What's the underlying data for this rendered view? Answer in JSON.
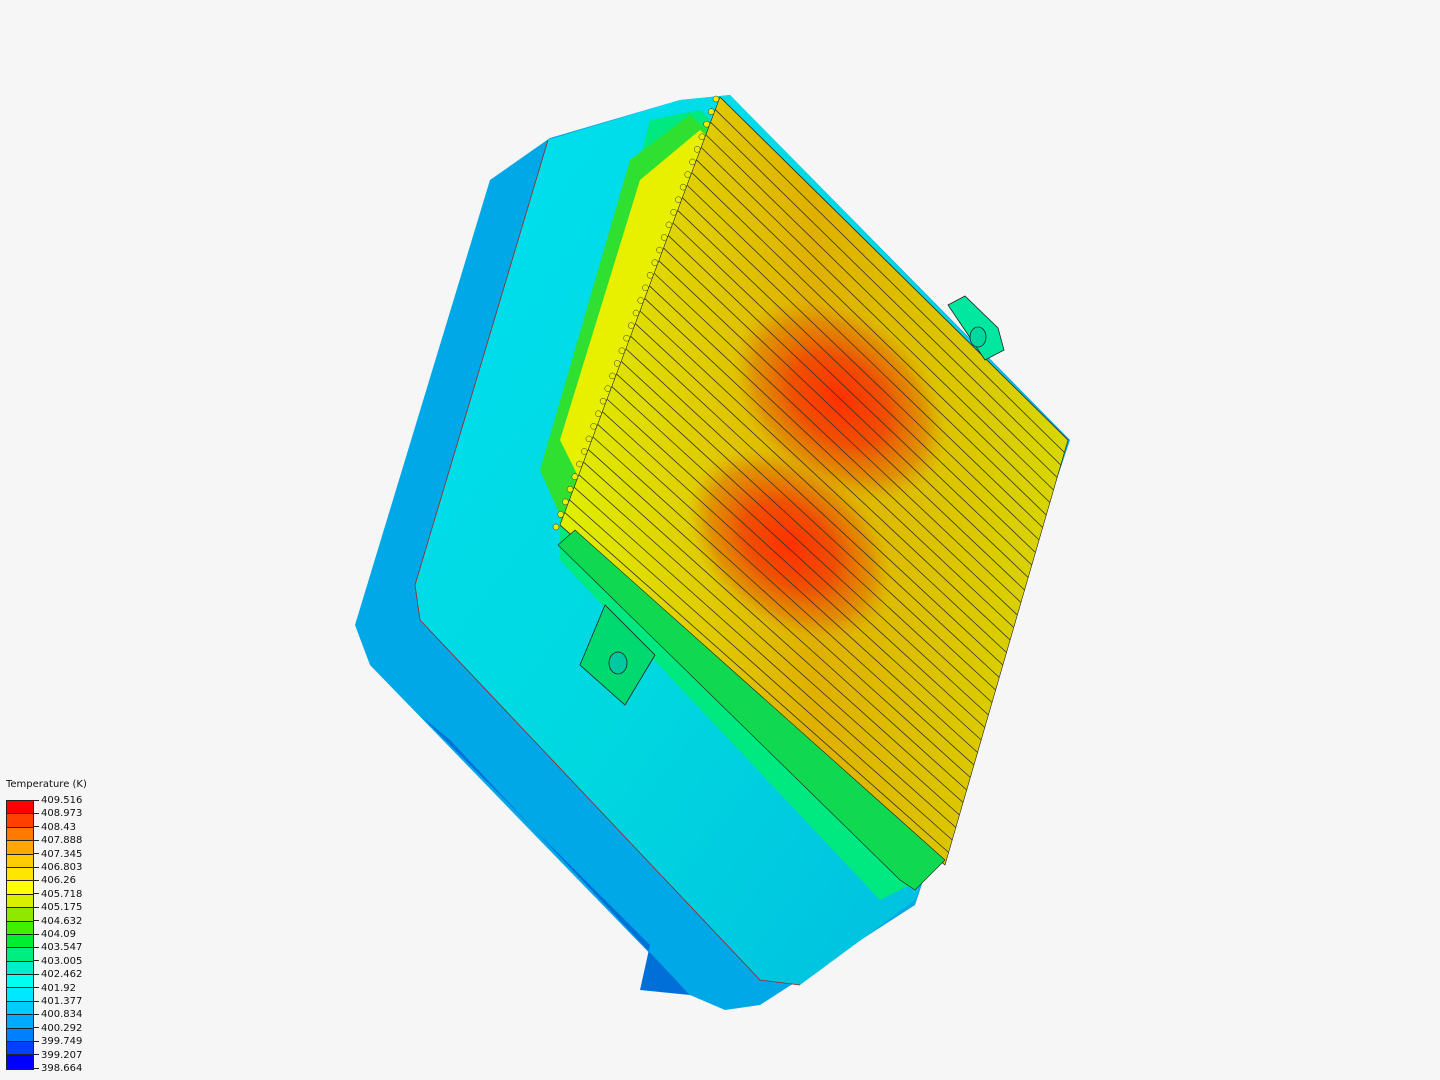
{
  "legend": {
    "title": "Temperature (K)",
    "ticks": [
      "409.516",
      "408.973",
      "408.43",
      "407.888",
      "407.345",
      "406.803",
      "406.26",
      "405.718",
      "405.175",
      "404.632",
      "404.09",
      "403.547",
      "403.005",
      "402.462",
      "401.92",
      "401.377",
      "400.834",
      "400.292",
      "399.749",
      "399.207",
      "398.664"
    ],
    "band_colors": [
      "#ff0000",
      "#ff4000",
      "#ff7a00",
      "#ffa800",
      "#ffcc00",
      "#ffe600",
      "#ffff00",
      "#d8f000",
      "#90e800",
      "#40f000",
      "#00ee30",
      "#00ee80",
      "#00eec8",
      "#00fff0",
      "#00e8ff",
      "#00ccff",
      "#00aaff",
      "#0080ff",
      "#0040ff",
      "#0000ff"
    ]
  },
  "viewport": {
    "background": "#f6f6f6",
    "model": "heat-sink-enclosure"
  }
}
